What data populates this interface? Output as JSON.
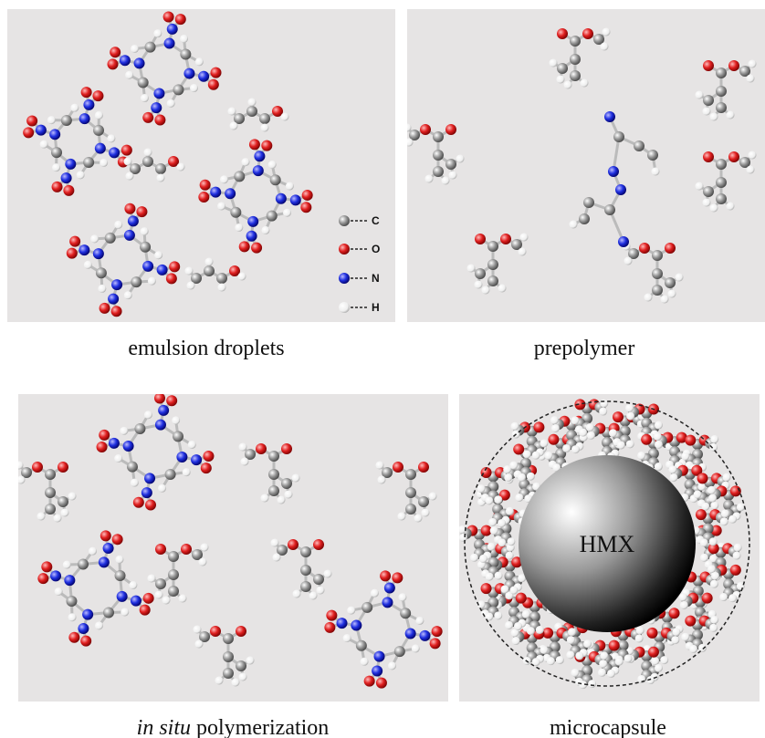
{
  "panels": [
    {
      "caption": "emulsion droplets",
      "legend": [
        "C",
        "O",
        "N",
        "H"
      ]
    },
    {
      "caption": "prepolymer"
    },
    {
      "caption": {
        "italic": "in situ",
        "text": "polymerization"
      }
    },
    {
      "caption": "microcapsule",
      "core_label": "HMX"
    }
  ]
}
